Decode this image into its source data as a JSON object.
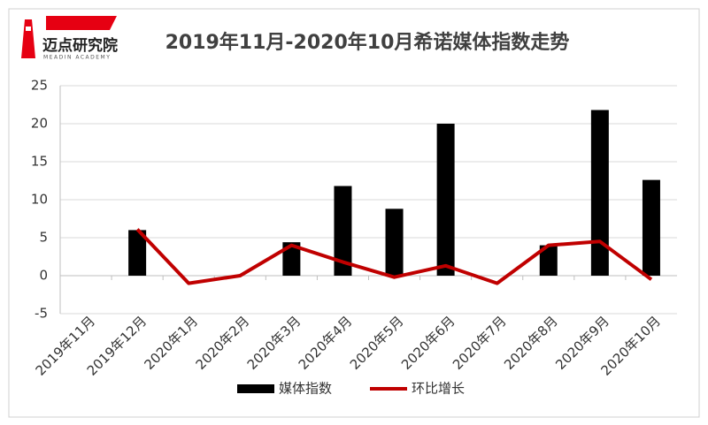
{
  "chart_data": {
    "type": "bar",
    "title": "2019年11月-2020年10月希诺媒体指数走势",
    "logo_text": "迈点研究院",
    "logo_subtext": "MEADIN ACADEMY",
    "categories": [
      "2019年11月",
      "2019年12月",
      "2020年1月",
      "2020年2月",
      "2020年3月",
      "2020年4月",
      "2020年5月",
      "2020年6月",
      "2020年7月",
      "2020年8月",
      "2020年9月",
      "2020年10月"
    ],
    "series": [
      {
        "name": "媒体指数",
        "type": "bar",
        "color": "#000000",
        "values": [
          0,
          6,
          0,
          0,
          4.4,
          11.8,
          8.8,
          20,
          0,
          4,
          21.8,
          12.6
        ]
      },
      {
        "name": "环比增长",
        "type": "line",
        "color": "#c00000",
        "values": [
          null,
          6.1,
          -1,
          0,
          4,
          1.8,
          -0.2,
          1.3,
          -1,
          4,
          4.5,
          -0.5
        ]
      }
    ],
    "ylim": [
      -5,
      25
    ],
    "yticks": [
      -5,
      0,
      5,
      10,
      15,
      20,
      25
    ],
    "grid": true,
    "legend": "bottom"
  }
}
